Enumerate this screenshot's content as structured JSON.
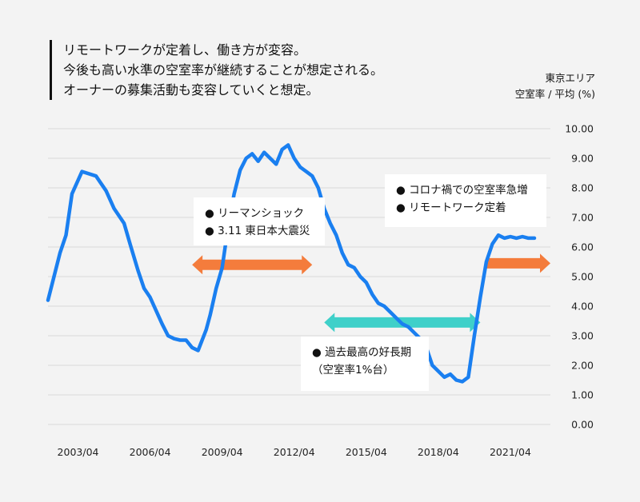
{
  "heading": {
    "line1": "リモートワークが定着し、働き方が変容。",
    "line2": "今後も高い水準の空室率が継続することが想定される。",
    "line3": "オーナーの募集活動も変容していくと想定。"
  },
  "unit": {
    "line1": "東京エリア",
    "line2": "空室率 / 平均 (%)"
  },
  "annotations": [
    {
      "lines": [
        "● リーマンショック",
        "● 3.11 東日本大震災"
      ]
    },
    {
      "lines": [
        "● コロナ禍での空室率急増",
        "● リモートワーク定着"
      ]
    },
    {
      "lines": [
        "● 過去最高の好長期",
        "（空室率1%台）"
      ]
    }
  ],
  "colors": {
    "line": "#1a7ff0",
    "orange_arrow": "#f47c3c",
    "teal_arrow": "#3fd0c9",
    "grid": "#d9d9d9",
    "background": "#f3f3f3"
  },
  "chart_data": {
    "type": "line",
    "title": "",
    "ylabel": "空室率 / 平均 (%)",
    "ylim": [
      0,
      10
    ],
    "yticks": [
      "10.00",
      "9.00",
      "8.00",
      "7.00",
      "6.00",
      "5.00",
      "4.00",
      "3.00",
      "2.00",
      "1.00",
      "0.00"
    ],
    "xticks": [
      "2003/04",
      "2006/04",
      "2009/04",
      "2012/04",
      "2015/04",
      "2018/04",
      "2021/04"
    ],
    "xlim": [
      "2002/01",
      "2022/12"
    ],
    "grid": true,
    "series": [
      {
        "x": [
          "2002/01",
          "2002/07",
          "2002/10",
          "2003/01",
          "2003/06",
          "2004/01",
          "2004/06",
          "2004/10",
          "2005/03",
          "2005/06",
          "2005/10",
          "2006/01",
          "2006/04",
          "2006/10",
          "2007/01",
          "2007/04",
          "2007/07",
          "2007/10",
          "2008/01",
          "2008/04",
          "2008/08",
          "2008/10",
          "2009/01",
          "2009/04",
          "2009/07",
          "2009/10",
          "2010/01",
          "2010/04",
          "2010/07",
          "2010/10",
          "2011/01",
          "2011/04",
          "2011/07",
          "2011/10",
          "2012/01",
          "2012/04",
          "2012/07",
          "2012/10",
          "2013/01",
          "2013/04",
          "2013/07",
          "2013/10",
          "2014/01",
          "2014/04",
          "2014/07",
          "2014/10",
          "2015/01",
          "2015/04",
          "2015/07",
          "2015/10",
          "2016/01",
          "2016/04",
          "2016/07",
          "2016/10",
          "2017/01",
          "2017/04",
          "2017/07",
          "2017/10",
          "2018/01",
          "2018/04",
          "2018/07",
          "2018/10",
          "2019/01",
          "2019/04",
          "2019/07",
          "2019/10",
          "2020/01",
          "2020/04",
          "2020/07",
          "2020/10",
          "2021/01",
          "2021/04",
          "2021/07",
          "2021/10",
          "2022/01",
          "2022/04"
        ],
        "y": [
          4.2,
          5.8,
          6.4,
          7.8,
          8.55,
          8.4,
          7.9,
          7.3,
          6.8,
          6.1,
          5.2,
          4.6,
          4.3,
          3.4,
          3.0,
          2.9,
          2.85,
          2.85,
          2.6,
          2.5,
          3.2,
          3.7,
          4.6,
          5.3,
          6.7,
          7.8,
          8.6,
          9.0,
          9.15,
          8.9,
          9.2,
          9.0,
          8.8,
          9.3,
          9.45,
          9.0,
          8.7,
          8.55,
          8.4,
          8.0,
          7.3,
          6.8,
          6.4,
          5.8,
          5.4,
          5.3,
          5.0,
          4.8,
          4.4,
          4.1,
          4.0,
          3.8,
          3.6,
          3.4,
          3.3,
          3.1,
          2.9,
          2.6,
          2.0,
          1.8,
          1.6,
          1.7,
          1.5,
          1.45,
          1.6,
          3.0,
          4.3,
          5.5,
          6.1,
          6.4,
          6.3,
          6.35,
          6.3,
          6.35,
          6.3,
          6.3
        ]
      }
    ],
    "arrows": [
      {
        "color": "orange",
        "from": "2008/01",
        "to": "2013/01",
        "y": 5.4,
        "heads": "both"
      },
      {
        "color": "teal",
        "from": "2013/07",
        "to": "2020/01",
        "y": 3.45,
        "heads": "both"
      },
      {
        "color": "orange",
        "from": "2020/04",
        "to": "2022/12",
        "y": 5.45,
        "heads": "right"
      }
    ]
  }
}
